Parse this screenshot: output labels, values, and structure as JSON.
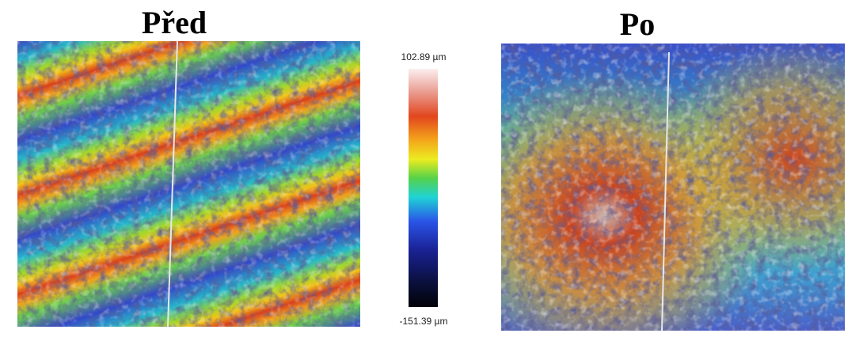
{
  "panels": [
    {
      "title": "Před"
    },
    {
      "title": "Po"
    }
  ],
  "colorbar": {
    "max_label": "102.89 µm",
    "min_label": "-151.39 µm"
  }
}
